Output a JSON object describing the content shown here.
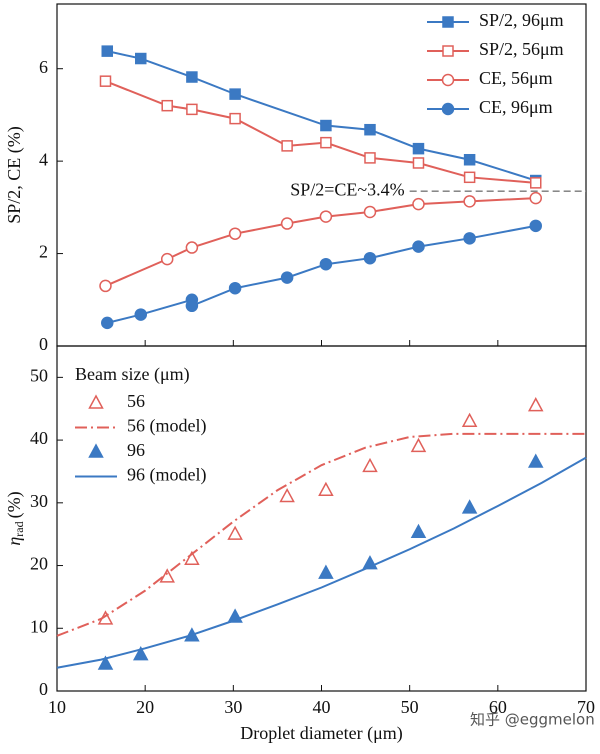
{
  "chart_data": [
    {
      "type": "line",
      "xlim": [
        10,
        70
      ],
      "xticks": [
        10,
        20,
        30,
        40,
        50,
        60,
        70
      ],
      "show_xtick_labels": false,
      "ylim": [
        0,
        7.4
      ],
      "yticks": [
        0,
        2,
        4,
        6
      ],
      "ylabel": "SP/2, CE (%)",
      "legend": "upper right",
      "reference_line": {
        "y": 3.35,
        "xlim": [
          50,
          70
        ],
        "label": "SP/2=CE~3.4%"
      },
      "series": [
        {
          "name": "SP/2, 96μm",
          "color": "#3b79c3",
          "marker": "square",
          "filled": true,
          "line": "solid",
          "x": [
            15.7,
            19.5,
            25.3,
            30.2,
            40.5,
            45.5,
            51,
            56.8,
            64.3
          ],
          "values": [
            6.38,
            6.22,
            5.82,
            5.45,
            4.77,
            4.68,
            4.27,
            4.03,
            3.58
          ]
        },
        {
          "name": "SP/2, 56μm",
          "color": "#e0605a",
          "marker": "square",
          "filled": false,
          "line": "solid",
          "x": [
            15.5,
            22.5,
            25.3,
            30.2,
            36.1,
            40.5,
            45.5,
            51,
            56.8,
            64.3
          ],
          "values": [
            5.73,
            5.2,
            5.12,
            4.92,
            4.33,
            4.4,
            4.07,
            3.96,
            3.65,
            3.53
          ]
        },
        {
          "name": "CE, 56μm",
          "color": "#e0605a",
          "marker": "circle",
          "filled": false,
          "line": "solid",
          "x": [
            15.5,
            22.5,
            25.3,
            30.2,
            36.1,
            40.5,
            45.5,
            51,
            56.8,
            64.3
          ],
          "values": [
            1.3,
            1.88,
            2.13,
            2.43,
            2.65,
            2.8,
            2.9,
            3.07,
            3.13,
            3.2
          ]
        },
        {
          "name": "CE, 96μm",
          "color": "#3b79c3",
          "marker": "circle",
          "filled": true,
          "line": "solid",
          "x": [
            15.7,
            19.5,
            25.3,
            25.3,
            30.2,
            36.1,
            40.5,
            45.5,
            51,
            56.8,
            64.3
          ],
          "values": [
            0.5,
            0.68,
            1.0,
            0.87,
            1.25,
            1.48,
            1.77,
            1.9,
            2.15,
            2.33,
            2.6
          ]
        }
      ]
    },
    {
      "type": "line",
      "xlim": [
        10,
        70
      ],
      "xticks": [
        10,
        20,
        30,
        40,
        50,
        60,
        70
      ],
      "show_xtick_labels": true,
      "xlabel": "Droplet diameter (μm)",
      "ylim": [
        0,
        55
      ],
      "yticks": [
        0,
        10,
        20,
        30,
        40,
        50
      ],
      "ylabel": "η",
      "ylabel_sub": "rad",
      "ylabel_suffix": "(%)",
      "legend": "upper left",
      "legend_title": "Beam size (μm)",
      "series": [
        {
          "name": "56",
          "color": "#e0605a",
          "marker": "triangle",
          "filled": false,
          "line": "none",
          "x": [
            15.5,
            22.5,
            25.3,
            30.2,
            36.1,
            40.5,
            45.5,
            51,
            56.8,
            64.3
          ],
          "values": [
            11.5,
            18.2,
            21,
            25,
            31,
            32,
            35.8,
            39,
            43,
            45.5
          ]
        },
        {
          "name": "56 (model)",
          "color": "#e0605a",
          "line": "dashdot",
          "x": [
            10,
            15,
            20,
            25,
            30,
            35,
            40,
            45,
            50,
            55,
            60,
            70
          ],
          "values": [
            8.8,
            11.5,
            16,
            21.5,
            27,
            32,
            36,
            38.8,
            40.5,
            41,
            41,
            41
          ]
        },
        {
          "name": "96",
          "color": "#3b79c3",
          "marker": "triangle",
          "filled": true,
          "line": "none",
          "x": [
            15.5,
            19.5,
            25.3,
            30.2,
            40.5,
            45.5,
            51,
            56.8,
            64.3
          ],
          "values": [
            4.3,
            5.8,
            8.8,
            11.8,
            18.8,
            20.3,
            25.3,
            29.2,
            36.5
          ]
        },
        {
          "name": "96 (model)",
          "color": "#3b79c3",
          "line": "solid",
          "x": [
            10,
            15,
            20,
            25,
            30,
            35,
            40,
            45,
            50,
            55,
            60,
            65,
            70
          ],
          "values": [
            3.7,
            5,
            6.8,
            8.8,
            11.2,
            13.8,
            16.5,
            19.5,
            22.6,
            25.9,
            29.5,
            33.2,
            37.2
          ]
        }
      ]
    }
  ],
  "watermark": "知乎 @eggmelon"
}
